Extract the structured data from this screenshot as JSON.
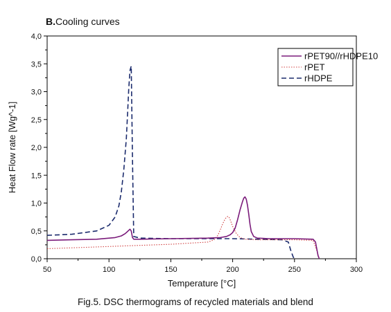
{
  "chart_data": {
    "type": "line",
    "title_prefix": "B.",
    "title": "Cooling curves",
    "xlabel": "Temperature [°C]",
    "ylabel": "Heat Flow rate [Wg^-1]",
    "caption": "Fig.5. DSC thermograms of recycled materials and blend",
    "xlim": [
      50,
      300
    ],
    "ylim": [
      0,
      4
    ],
    "xticks": [
      50,
      100,
      150,
      200,
      250,
      300
    ],
    "yticks": [
      0,
      0.5,
      1,
      1.5,
      2,
      2.5,
      3,
      3.5,
      4
    ],
    "ytick_labels": [
      "0,0",
      "0,5",
      "1,0",
      "1,5",
      "2,0",
      "2,5",
      "3,0",
      "3,5",
      "4,0"
    ],
    "grid": false,
    "legend_position": "top-right",
    "series": [
      {
        "name": "rPET90//rHDPE10",
        "color": "#7a1a7a",
        "style": "solid",
        "x": [
          50,
          70,
          90,
          105,
          110,
          113,
          115,
          117,
          118,
          119,
          120,
          125,
          150,
          180,
          190,
          195,
          198,
          200,
          202,
          204,
          206,
          208,
          209,
          210,
          211,
          212,
          213,
          214,
          215,
          217,
          220,
          230,
          250,
          265,
          267,
          268,
          269,
          270
        ],
        "y": [
          0.33,
          0.34,
          0.35,
          0.38,
          0.41,
          0.45,
          0.49,
          0.53,
          0.5,
          0.38,
          0.35,
          0.35,
          0.36,
          0.37,
          0.38,
          0.4,
          0.43,
          0.47,
          0.55,
          0.7,
          0.88,
          1.03,
          1.09,
          1.11,
          1.07,
          0.96,
          0.8,
          0.62,
          0.49,
          0.4,
          0.37,
          0.36,
          0.36,
          0.35,
          0.3,
          0.18,
          0.06,
          0.0
        ]
      },
      {
        "name": "rPET",
        "color": "#d04040",
        "style": "dotted",
        "x": [
          50,
          100,
          150,
          180,
          185,
          188,
          190,
          192,
          194,
          196,
          197,
          198,
          200,
          203,
          206,
          210,
          220,
          250,
          265,
          268,
          270
        ],
        "y": [
          0.18,
          0.22,
          0.26,
          0.3,
          0.34,
          0.42,
          0.52,
          0.63,
          0.72,
          0.76,
          0.75,
          0.7,
          0.58,
          0.45,
          0.38,
          0.35,
          0.34,
          0.34,
          0.33,
          0.15,
          0.0
        ]
      },
      {
        "name": "rHDPE",
        "color": "#1a2a6c",
        "style": "dashed",
        "x": [
          50,
          70,
          90,
          100,
          105,
          108,
          110,
          112,
          114,
          115,
          116,
          117,
          118,
          119,
          120,
          125,
          150,
          200,
          240,
          245,
          247,
          249,
          250
        ],
        "y": [
          0.42,
          0.44,
          0.5,
          0.6,
          0.75,
          0.95,
          1.2,
          1.6,
          2.15,
          2.6,
          3.05,
          3.38,
          3.46,
          1.8,
          0.4,
          0.37,
          0.36,
          0.36,
          0.34,
          0.3,
          0.15,
          0.03,
          0.0
        ]
      }
    ]
  }
}
